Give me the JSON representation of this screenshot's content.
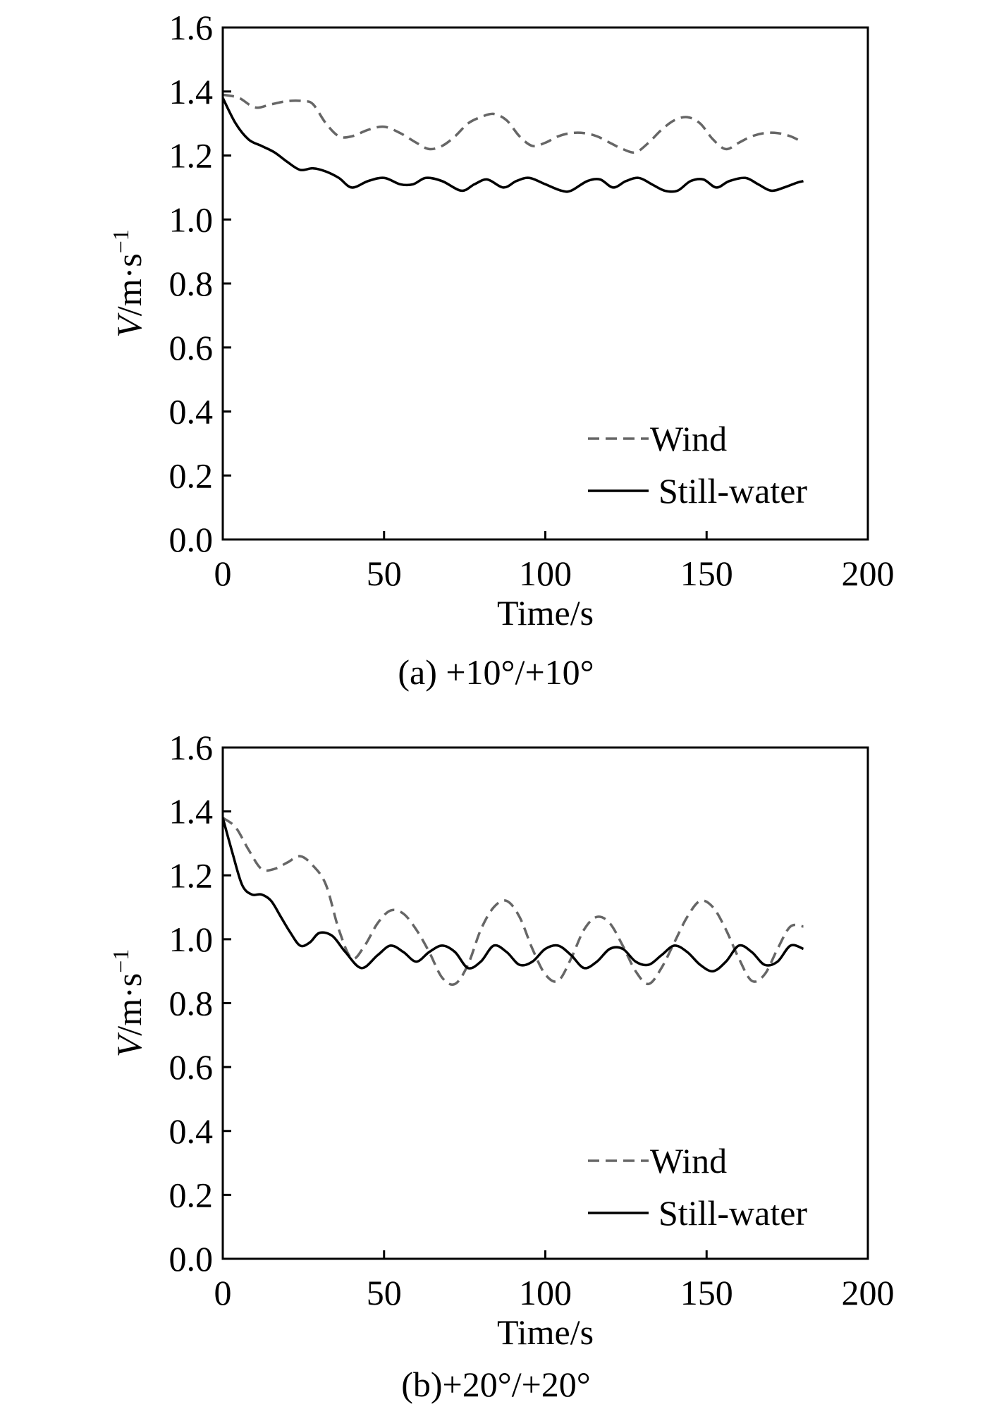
{
  "chart_data": [
    {
      "type": "line",
      "caption": "(a) +10°/+10°",
      "xlabel": "Time/s",
      "ylabel": {
        "var": "V",
        "unit": "/m·s",
        "sup": "−1"
      },
      "xlim": [
        0,
        200
      ],
      "ylim": [
        0,
        1.6
      ],
      "xticks": [
        "0",
        "50",
        "100",
        "150",
        "200"
      ],
      "yticks": [
        "0.0",
        "0.2",
        "0.4",
        "0.6",
        "0.8",
        "1.0",
        "1.2",
        "1.4",
        "1.6"
      ],
      "grid": false,
      "legend": "lower-right",
      "series": [
        {
          "name": "Wind",
          "style": "dashed",
          "color": "#666666",
          "x": [
            0,
            5,
            10,
            15,
            20,
            25,
            28,
            32,
            36,
            40,
            45,
            50,
            55,
            60,
            64,
            68,
            72,
            76,
            80,
            84,
            88,
            92,
            96,
            100,
            104,
            108,
            112,
            116,
            120,
            124,
            128,
            132,
            136,
            140,
            144,
            148,
            152,
            156,
            160,
            164,
            168,
            172,
            176,
            180
          ],
          "y": [
            1.39,
            1.38,
            1.35,
            1.36,
            1.37,
            1.37,
            1.36,
            1.3,
            1.26,
            1.26,
            1.28,
            1.29,
            1.27,
            1.24,
            1.22,
            1.23,
            1.26,
            1.3,
            1.32,
            1.33,
            1.31,
            1.26,
            1.23,
            1.24,
            1.26,
            1.27,
            1.27,
            1.26,
            1.24,
            1.22,
            1.21,
            1.24,
            1.28,
            1.31,
            1.32,
            1.3,
            1.25,
            1.22,
            1.24,
            1.26,
            1.27,
            1.27,
            1.26,
            1.24
          ]
        },
        {
          "name": "Still-water",
          "style": "solid",
          "color": "#000000",
          "x": [
            0,
            4,
            8,
            12,
            16,
            20,
            24,
            28,
            32,
            36,
            40,
            45,
            50,
            55,
            59,
            63,
            68,
            74,
            78,
            82,
            87,
            91,
            95,
            100,
            105,
            108,
            113,
            117,
            121,
            125,
            129,
            133,
            137,
            141,
            145,
            149,
            153,
            157,
            162,
            166,
            170,
            174,
            178,
            180
          ],
          "y": [
            1.38,
            1.3,
            1.25,
            1.23,
            1.21,
            1.18,
            1.155,
            1.16,
            1.15,
            1.13,
            1.1,
            1.12,
            1.13,
            1.11,
            1.11,
            1.13,
            1.12,
            1.09,
            1.11,
            1.125,
            1.1,
            1.12,
            1.13,
            1.11,
            1.09,
            1.09,
            1.12,
            1.125,
            1.1,
            1.12,
            1.13,
            1.11,
            1.09,
            1.09,
            1.12,
            1.125,
            1.1,
            1.12,
            1.13,
            1.11,
            1.09,
            1.1,
            1.115,
            1.12
          ]
        }
      ]
    },
    {
      "type": "line",
      "caption": "(b)+20°/+20°",
      "xlabel": "Time/s",
      "ylabel": {
        "var": "V",
        "unit": "/m·s",
        "sup": "−1"
      },
      "xlim": [
        0,
        200
      ],
      "ylim": [
        0,
        1.6
      ],
      "xticks": [
        "0",
        "50",
        "100",
        "150",
        "200"
      ],
      "yticks": [
        "0.0",
        "0.2",
        "0.4",
        "0.6",
        "0.8",
        "1.0",
        "1.2",
        "1.4",
        "1.6"
      ],
      "grid": false,
      "legend": "lower-right",
      "series": [
        {
          "name": "Wind",
          "style": "dashed",
          "color": "#666666",
          "x": [
            0,
            4,
            8,
            12,
            16,
            20,
            24,
            28,
            32,
            36,
            40,
            44,
            48,
            52,
            56,
            60,
            64,
            68,
            72,
            76,
            80,
            84,
            88,
            92,
            96,
            100,
            104,
            108,
            112,
            116,
            120,
            124,
            128,
            132,
            136,
            140,
            144,
            148,
            152,
            156,
            160,
            164,
            168,
            172,
            176,
            180
          ],
          "y": [
            1.38,
            1.35,
            1.28,
            1.22,
            1.22,
            1.24,
            1.26,
            1.23,
            1.17,
            1.03,
            0.94,
            0.98,
            1.05,
            1.09,
            1.08,
            1.03,
            0.96,
            0.88,
            0.86,
            0.92,
            1.03,
            1.1,
            1.12,
            1.07,
            0.97,
            0.89,
            0.87,
            0.94,
            1.03,
            1.07,
            1.05,
            0.98,
            0.9,
            0.86,
            0.91,
            0.99,
            1.07,
            1.12,
            1.1,
            1.03,
            0.94,
            0.87,
            0.89,
            0.97,
            1.04,
            1.04
          ]
        },
        {
          "name": "Still-water",
          "style": "solid",
          "color": "#000000",
          "x": [
            0,
            3,
            6,
            9,
            12,
            15,
            18,
            21,
            24,
            27,
            30,
            34,
            38,
            43,
            48,
            52,
            56,
            60,
            64,
            68,
            72,
            76,
            80,
            84,
            88,
            92,
            96,
            100,
            104,
            108,
            112,
            116,
            120,
            124,
            128,
            132,
            136,
            140,
            144,
            148,
            152,
            156,
            160,
            164,
            168,
            172,
            176,
            180
          ],
          "y": [
            1.38,
            1.27,
            1.17,
            1.14,
            1.14,
            1.12,
            1.07,
            1.02,
            0.98,
            0.99,
            1.02,
            1.01,
            0.96,
            0.91,
            0.95,
            0.98,
            0.96,
            0.93,
            0.96,
            0.98,
            0.96,
            0.91,
            0.93,
            0.98,
            0.96,
            0.92,
            0.93,
            0.97,
            0.98,
            0.95,
            0.91,
            0.93,
            0.97,
            0.97,
            0.93,
            0.92,
            0.95,
            0.98,
            0.96,
            0.92,
            0.9,
            0.93,
            0.98,
            0.96,
            0.92,
            0.93,
            0.98,
            0.97
          ]
        }
      ]
    }
  ]
}
